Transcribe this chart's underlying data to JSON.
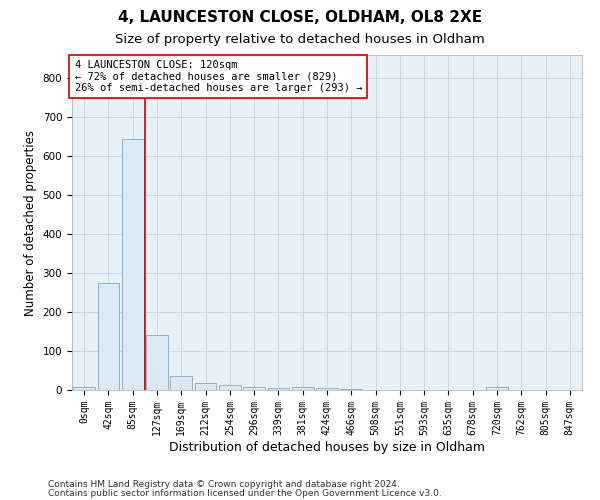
{
  "title1": "4, LAUNCESTON CLOSE, OLDHAM, OL8 2XE",
  "title2": "Size of property relative to detached houses in Oldham",
  "xlabel": "Distribution of detached houses by size in Oldham",
  "ylabel": "Number of detached properties",
  "footer1": "Contains HM Land Registry data © Crown copyright and database right 2024.",
  "footer2": "Contains public sector information licensed under the Open Government Licence v3.0.",
  "bin_labels": [
    "0sqm",
    "42sqm",
    "85sqm",
    "127sqm",
    "169sqm",
    "212sqm",
    "254sqm",
    "296sqm",
    "339sqm",
    "381sqm",
    "424sqm",
    "466sqm",
    "508sqm",
    "551sqm",
    "593sqm",
    "635sqm",
    "678sqm",
    "720sqm",
    "762sqm",
    "805sqm",
    "847sqm"
  ],
  "bar_values": [
    7,
    275,
    645,
    140,
    35,
    17,
    12,
    8,
    5,
    8,
    5,
    2,
    1,
    0,
    0,
    0,
    0,
    7,
    0,
    0,
    0
  ],
  "bar_color": "#dce9f5",
  "bar_edge_color": "#8ab4d4",
  "vline_index": 2.5,
  "vline_color": "#cc0000",
  "annotation_line1": "4 LAUNCESTON CLOSE: 120sqm",
  "annotation_line2": "← 72% of detached houses are smaller (829)",
  "annotation_line3": "26% of semi-detached houses are larger (293) →",
  "annotation_box_color": "#ffffff",
  "annotation_box_edge": "#cc0000",
  "ylim_max": 860,
  "yticks": [
    0,
    100,
    200,
    300,
    400,
    500,
    600,
    700,
    800
  ],
  "grid_color": "#c8d8ea",
  "bg_color": "#e8f0f8",
  "title1_fontsize": 11,
  "title2_fontsize": 9.5,
  "xlabel_fontsize": 9,
  "ylabel_fontsize": 8.5,
  "tick_fontsize": 7,
  "annotation_fontsize": 7.5,
  "footer_fontsize": 6.5
}
